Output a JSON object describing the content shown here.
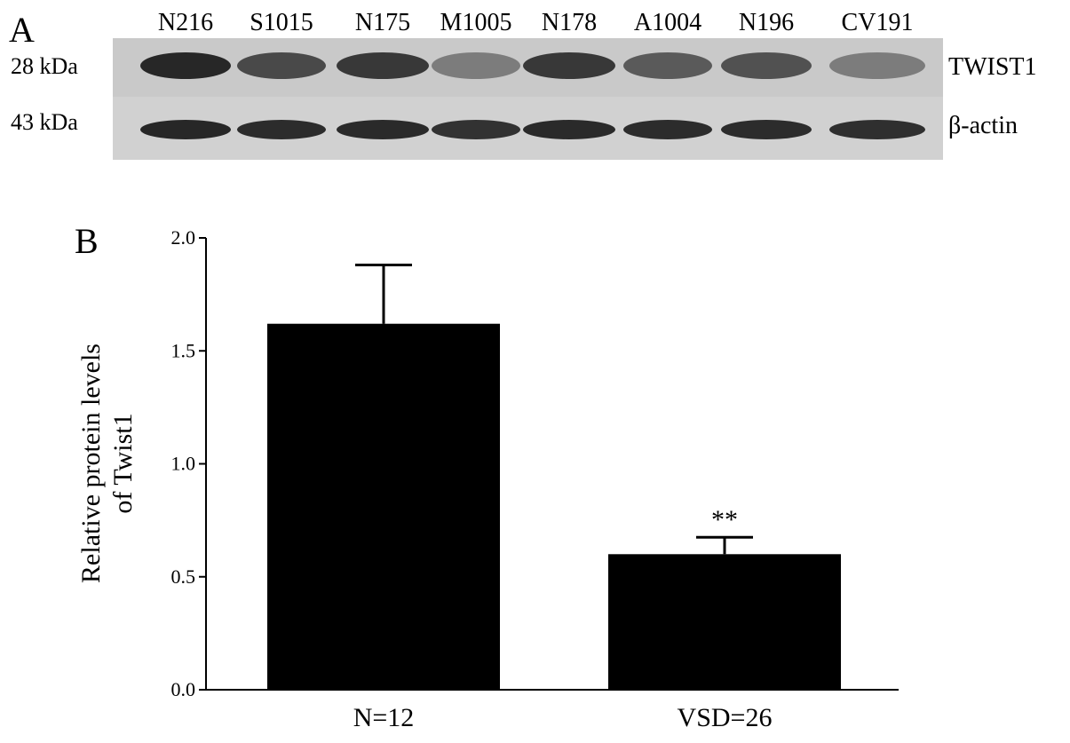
{
  "panel_a": {
    "label": "A",
    "lanes": [
      "N216",
      "S1015",
      "N175",
      "M1005",
      "N178",
      "A1004",
      "N196",
      "CV191"
    ],
    "lane_intensity": [
      {
        "twist1": 0.95,
        "actin": 0.95
      },
      {
        "twist1": 0.75,
        "actin": 0.92
      },
      {
        "twist1": 0.85,
        "actin": 0.93
      },
      {
        "twist1": 0.45,
        "actin": 0.88
      },
      {
        "twist1": 0.85,
        "actin": 0.93
      },
      {
        "twist1": 0.65,
        "actin": 0.92
      },
      {
        "twist1": 0.7,
        "actin": 0.92
      },
      {
        "twist1": 0.45,
        "actin": 0.9
      }
    ],
    "marker_top": "28 kDa",
    "marker_bottom": "43 kDa",
    "protein_top": "TWIST1",
    "protein_bottom": "β-actin"
  },
  "panel_b": {
    "label": "B"
  },
  "chart_data": {
    "type": "bar",
    "categories": [
      "N=12",
      "VSD=26"
    ],
    "values": [
      1.62,
      0.6
    ],
    "errors": [
      0.26,
      0.075
    ],
    "annotations": [
      "",
      "**"
    ],
    "ylabel_line1": "Relative protein levels",
    "ylabel_line2": "of Twist1",
    "ylim": [
      0.0,
      2.0
    ],
    "yticks": [
      0.0,
      0.5,
      1.0,
      1.5,
      2.0
    ],
    "ytick_labels": [
      "0.0",
      "0.5",
      "1.0",
      "1.5",
      "2.0"
    ],
    "bar_color": "#000000"
  }
}
